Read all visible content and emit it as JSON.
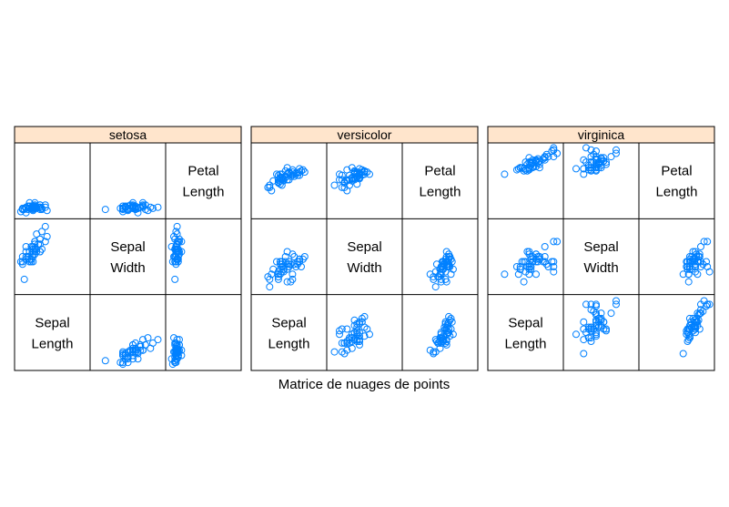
{
  "chart_data": {
    "type": "scatter",
    "subtype": "scatterplot-matrix",
    "xlabel": "Matrice de nuages de points",
    "variables": [
      "Sepal Length",
      "Sepal Width",
      "Petal Length"
    ],
    "variable_labels": [
      [
        "Sepal",
        "Length"
      ],
      [
        "Sepal",
        "Width"
      ],
      [
        "Petal",
        "Length"
      ]
    ],
    "variable_ranges": {
      "Sepal Length": [
        4.1,
        8.1
      ],
      "Sepal Width": [
        1.8,
        4.6
      ],
      "Petal Length": [
        0.7,
        7.1
      ]
    },
    "strip_color": "#ffe5cc",
    "point_color": "#0080ff",
    "panels": [
      {
        "name": "setosa",
        "sepal_length": [
          5.1,
          4.9,
          4.7,
          4.6,
          5.0,
          5.4,
          4.6,
          5.0,
          4.4,
          4.9,
          5.4,
          4.8,
          4.8,
          4.3,
          5.8,
          5.7,
          5.4,
          5.1,
          5.7,
          5.1,
          5.4,
          5.1,
          4.6,
          5.1,
          4.8,
          5.0,
          5.0,
          5.2,
          5.2,
          4.7,
          4.8,
          5.4,
          5.2,
          5.5,
          4.9,
          5.0,
          5.5,
          4.9,
          4.4,
          5.1,
          5.0,
          4.5,
          4.4,
          5.0,
          5.1,
          4.8,
          5.1,
          4.6,
          5.3,
          5.0
        ],
        "sepal_width": [
          3.5,
          3.0,
          3.2,
          3.1,
          3.6,
          3.9,
          3.4,
          3.4,
          2.9,
          3.1,
          3.7,
          3.4,
          3.0,
          3.0,
          4.0,
          4.4,
          3.9,
          3.5,
          3.8,
          3.8,
          3.4,
          3.7,
          3.6,
          3.3,
          3.4,
          3.0,
          3.4,
          3.5,
          3.4,
          3.2,
          3.1,
          3.4,
          4.1,
          4.2,
          3.1,
          3.2,
          3.5,
          3.6,
          3.0,
          3.4,
          3.5,
          2.3,
          3.2,
          3.5,
          3.8,
          3.0,
          3.8,
          3.2,
          3.7,
          3.3
        ],
        "petal_length": [
          1.4,
          1.4,
          1.3,
          1.5,
          1.4,
          1.7,
          1.4,
          1.5,
          1.4,
          1.5,
          1.5,
          1.6,
          1.4,
          1.1,
          1.2,
          1.5,
          1.3,
          1.4,
          1.7,
          1.5,
          1.7,
          1.5,
          1.0,
          1.7,
          1.9,
          1.6,
          1.6,
          1.5,
          1.4,
          1.6,
          1.6,
          1.5,
          1.5,
          1.4,
          1.5,
          1.2,
          1.3,
          1.4,
          1.3,
          1.5,
          1.3,
          1.3,
          1.3,
          1.6,
          1.9,
          1.4,
          1.6,
          1.4,
          1.5,
          1.4
        ]
      },
      {
        "name": "versicolor",
        "sepal_length": [
          7.0,
          6.4,
          6.9,
          5.5,
          6.5,
          5.7,
          6.3,
          4.9,
          6.6,
          5.2,
          5.0,
          5.9,
          6.0,
          6.1,
          5.6,
          6.7,
          5.6,
          5.8,
          6.2,
          5.6,
          5.9,
          6.1,
          6.3,
          6.1,
          6.4,
          6.6,
          6.8,
          6.7,
          6.0,
          5.7,
          5.5,
          5.5,
          5.8,
          6.0,
          5.4,
          6.0,
          6.7,
          6.3,
          5.6,
          5.5,
          5.5,
          6.1,
          5.8,
          5.0,
          5.6,
          5.7,
          5.7,
          6.2,
          5.1,
          5.7
        ],
        "sepal_width": [
          3.2,
          3.2,
          3.1,
          2.3,
          2.8,
          2.8,
          3.3,
          2.4,
          2.9,
          2.7,
          2.0,
          3.0,
          2.2,
          2.9,
          2.9,
          3.1,
          3.0,
          2.7,
          2.2,
          2.5,
          3.2,
          2.8,
          2.5,
          2.8,
          2.9,
          3.0,
          2.8,
          3.0,
          2.9,
          2.6,
          2.4,
          2.4,
          2.7,
          2.7,
          3.0,
          3.4,
          3.1,
          2.3,
          3.0,
          2.5,
          2.6,
          3.0,
          2.6,
          2.3,
          2.7,
          3.0,
          2.9,
          2.9,
          2.5,
          2.8
        ],
        "petal_length": [
          4.7,
          4.5,
          4.9,
          4.0,
          4.6,
          4.5,
          4.7,
          3.3,
          4.6,
          3.9,
          3.5,
          4.2,
          4.0,
          4.7,
          3.6,
          4.4,
          4.5,
          4.1,
          4.5,
          3.9,
          4.8,
          4.0,
          4.9,
          4.7,
          4.3,
          4.4,
          4.8,
          5.0,
          4.5,
          3.5,
          3.8,
          3.7,
          3.9,
          5.1,
          4.5,
          4.5,
          4.7,
          4.4,
          4.1,
          4.0,
          4.4,
          4.6,
          4.0,
          3.3,
          4.2,
          4.2,
          4.2,
          4.3,
          3.0,
          4.1
        ]
      },
      {
        "name": "virginica",
        "sepal_length": [
          6.3,
          5.8,
          7.1,
          6.3,
          6.5,
          7.6,
          4.9,
          7.3,
          6.7,
          7.2,
          6.5,
          6.4,
          6.8,
          5.7,
          5.8,
          6.4,
          6.5,
          7.7,
          7.7,
          6.0,
          6.9,
          5.6,
          7.7,
          6.3,
          6.7,
          7.2,
          6.2,
          6.1,
          6.4,
          7.2,
          7.4,
          7.9,
          6.4,
          6.3,
          6.1,
          7.7,
          6.3,
          6.4,
          6.0,
          6.9,
          6.7,
          6.9,
          5.8,
          6.8,
          6.7,
          6.7,
          6.3,
          6.5,
          6.2,
          5.9
        ],
        "sepal_width": [
          3.3,
          2.7,
          3.0,
          2.9,
          3.0,
          3.0,
          2.5,
          2.9,
          2.5,
          3.6,
          3.2,
          2.7,
          3.0,
          2.5,
          2.8,
          3.2,
          3.0,
          3.8,
          2.6,
          2.2,
          3.2,
          2.8,
          2.8,
          2.7,
          3.3,
          3.2,
          2.8,
          3.0,
          2.8,
          3.0,
          2.8,
          3.8,
          2.8,
          2.8,
          2.6,
          3.0,
          3.4,
          3.1,
          3.0,
          3.1,
          3.1,
          3.1,
          2.7,
          3.2,
          3.3,
          3.0,
          2.5,
          3.0,
          3.4,
          3.0
        ],
        "petal_length": [
          6.0,
          5.1,
          5.9,
          5.6,
          5.8,
          6.6,
          4.5,
          6.3,
          5.8,
          6.1,
          5.1,
          5.3,
          5.5,
          5.0,
          5.1,
          5.3,
          5.5,
          6.7,
          6.9,
          5.0,
          5.7,
          4.9,
          6.7,
          4.9,
          5.7,
          6.0,
          4.8,
          4.9,
          5.6,
          5.8,
          6.1,
          6.4,
          5.6,
          5.1,
          5.6,
          6.1,
          5.6,
          5.5,
          4.8,
          5.4,
          5.6,
          5.1,
          5.1,
          5.9,
          5.7,
          5.2,
          5.0,
          5.2,
          5.4,
          5.1
        ]
      }
    ]
  }
}
